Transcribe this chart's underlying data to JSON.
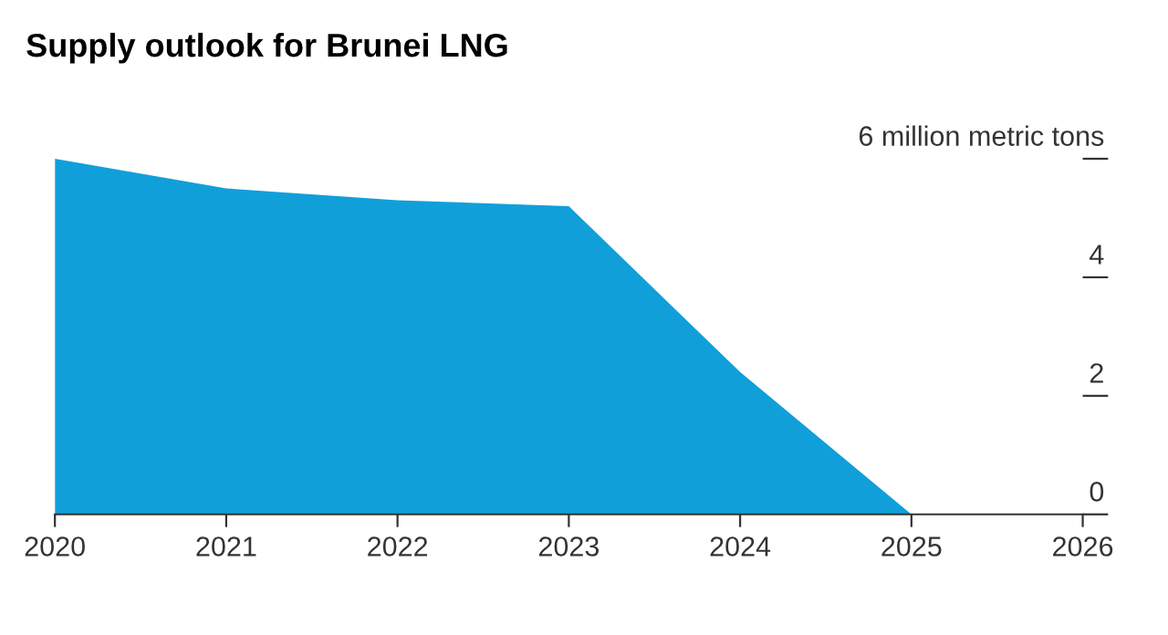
{
  "chart_data": {
    "type": "area",
    "title": "Supply outlook for Brunei LNG",
    "x": [
      2020,
      2021,
      2022,
      2023,
      2024,
      2025,
      2026
    ],
    "series": [
      {
        "color": "#119fda",
        "values": [
          6.0,
          5.5,
          5.3,
          5.2,
          2.4,
          0,
          0
        ]
      }
    ],
    "xlim": [
      2020,
      2026
    ],
    "xticks": [
      2020,
      2021,
      2022,
      2023,
      2024,
      2025,
      2026
    ],
    "ylim": [
      0,
      6
    ],
    "yticks": [
      0,
      2,
      4,
      {
        "value": 6,
        "label": "6 million metric tons"
      }
    ],
    "grid": false,
    "legend": false
  }
}
